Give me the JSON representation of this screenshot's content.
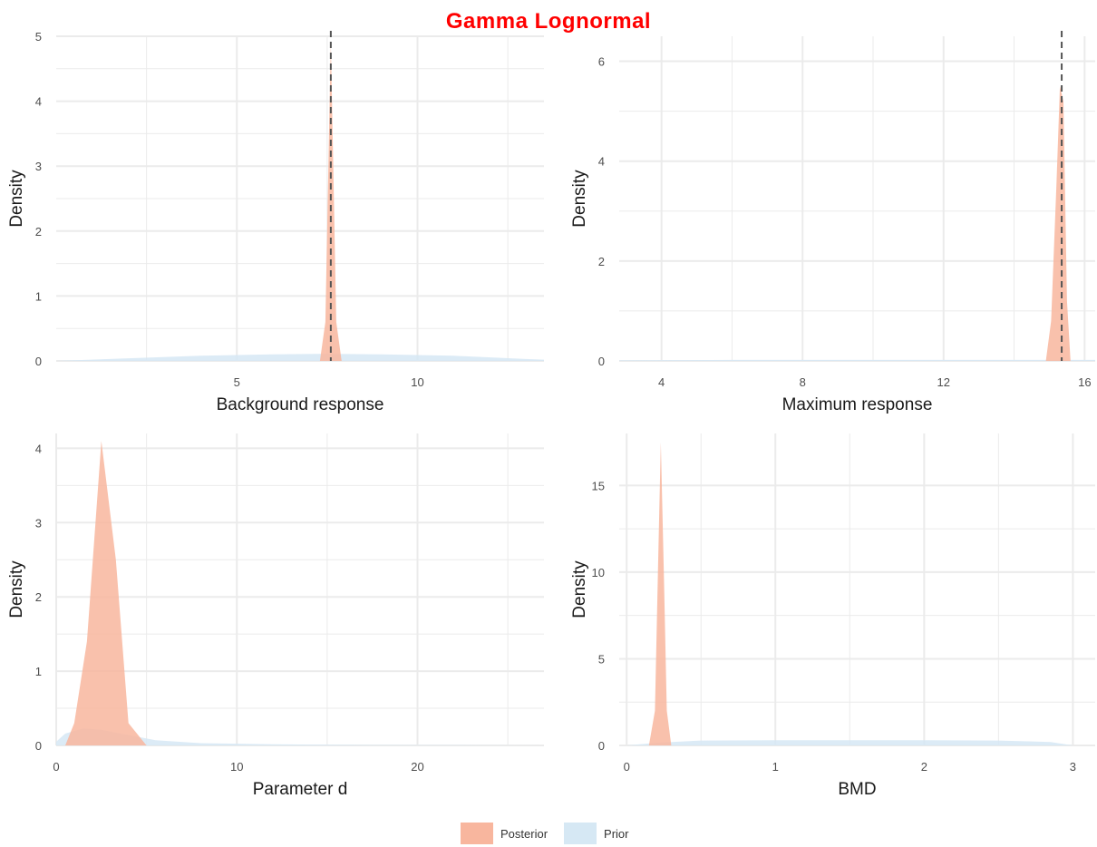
{
  "title": "Gamma Lognormal",
  "colors": {
    "posterior": "#f8b69e",
    "prior": "#d6e8f4",
    "grid": "#ebebeb",
    "title": "#ff0000"
  },
  "legend": {
    "items": [
      {
        "label": "Posterior",
        "color": "#f8b69e"
      },
      {
        "label": "Prior",
        "color": "#d6e8f4"
      }
    ]
  },
  "chart_data": [
    {
      "type": "area",
      "xlabel": "Background response",
      "ylabel": "Density",
      "xlim": [
        0,
        13.5
      ],
      "ylim": [
        0,
        5
      ],
      "xticks": [
        5,
        10
      ],
      "yticks": [
        0,
        1,
        2,
        3,
        4,
        5
      ],
      "grid": true,
      "vline": 7.6,
      "series": [
        {
          "name": "Prior",
          "x": [
            0,
            2,
            4,
            6,
            7.5,
            9,
            11,
            13,
            13.5
          ],
          "y": [
            0,
            0.04,
            0.08,
            0.1,
            0.11,
            0.1,
            0.08,
            0.03,
            0.02
          ]
        },
        {
          "name": "Posterior",
          "x": [
            7.3,
            7.45,
            7.55,
            7.6,
            7.65,
            7.75,
            7.9
          ],
          "y": [
            0,
            0.6,
            3.5,
            4.9,
            3.5,
            0.6,
            0
          ]
        }
      ]
    },
    {
      "type": "area",
      "xlabel": "Maximum response",
      "ylabel": "Density",
      "xlim": [
        2.8,
        16.3
      ],
      "ylim": [
        0,
        6.5
      ],
      "xticks": [
        4,
        8,
        12,
        16
      ],
      "yticks": [
        0,
        2,
        4,
        6
      ],
      "grid": true,
      "vline": 15.35,
      "series": [
        {
          "name": "Prior",
          "x": [
            2.8,
            6,
            10,
            14,
            16.3
          ],
          "y": [
            0.01,
            0.02,
            0.02,
            0.02,
            0.02
          ]
        },
        {
          "name": "Posterior",
          "x": [
            14.9,
            15.05,
            15.2,
            15.3,
            15.4,
            15.5,
            15.6
          ],
          "y": [
            0,
            0.8,
            3.5,
            5.5,
            5.2,
            1.2,
            0
          ]
        }
      ]
    },
    {
      "type": "area",
      "xlabel": "Parameter d",
      "ylabel": "Density",
      "xlim": [
        0,
        27
      ],
      "ylim": [
        0,
        4.2
      ],
      "xticks": [
        0,
        10,
        20
      ],
      "yticks": [
        0,
        1,
        2,
        3,
        4
      ],
      "grid": true,
      "series": [
        {
          "name": "Prior",
          "x": [
            0,
            0.5,
            1.5,
            2.5,
            4,
            5.5,
            8,
            12,
            18,
            27
          ],
          "y": [
            0.05,
            0.16,
            0.23,
            0.21,
            0.14,
            0.07,
            0.03,
            0.015,
            0.005,
            0
          ]
        },
        {
          "name": "Posterior",
          "x": [
            0.5,
            1,
            1.7,
            2.5,
            3.3,
            4,
            4.5,
            5
          ],
          "y": [
            0,
            0.3,
            1.4,
            4.1,
            2.5,
            0.3,
            0.15,
            0
          ]
        }
      ]
    },
    {
      "type": "area",
      "xlabel": "BMD",
      "ylabel": "Density",
      "xlim": [
        -0.05,
        3.15
      ],
      "ylim": [
        0,
        18
      ],
      "xticks": [
        0,
        1,
        2,
        3
      ],
      "yticks": [
        0,
        5,
        10,
        15
      ],
      "grid": true,
      "series": [
        {
          "name": "Prior",
          "x": [
            0,
            0.2,
            0.5,
            1,
            1.5,
            2,
            2.5,
            2.85,
            3
          ],
          "y": [
            0,
            0.15,
            0.28,
            0.3,
            0.3,
            0.3,
            0.28,
            0.2,
            0
          ]
        },
        {
          "name": "Posterior",
          "x": [
            0.15,
            0.19,
            0.21,
            0.23,
            0.25,
            0.27,
            0.3
          ],
          "y": [
            0,
            2,
            10,
            17.5,
            10,
            2,
            0
          ]
        }
      ]
    }
  ]
}
